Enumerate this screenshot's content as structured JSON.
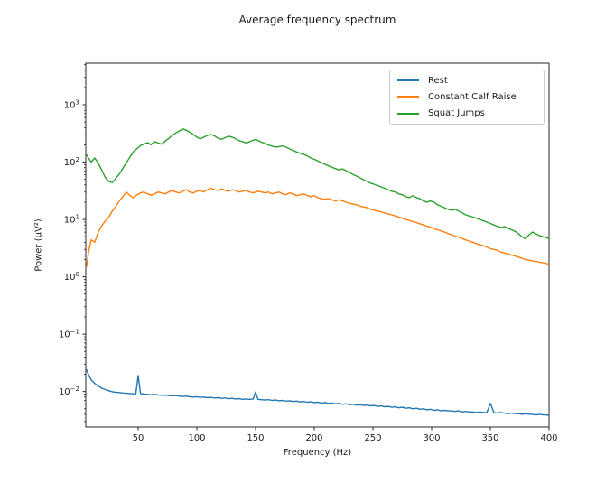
{
  "title": "Average frequency spectrum",
  "chart_data": {
    "type": "line",
    "title": "Average frequency spectrum",
    "xlabel": "Frequency (Hz)",
    "ylabel": "Power (µV²)",
    "x_scale": "linear",
    "y_scale": "log",
    "xlim": [
      5.4,
      400
    ],
    "ylim": [
      0.0024,
      5300
    ],
    "x_ticks": [
      50,
      100,
      150,
      200,
      250,
      300,
      350,
      400
    ],
    "y_tick_exponents": [
      3,
      2,
      1,
      0,
      -1,
      -2
    ],
    "grid": false,
    "legend_position": "upper right",
    "axis_color": "#262626",
    "x": [
      6,
      8,
      10,
      13,
      16,
      19,
      22,
      25,
      28,
      31,
      34,
      37,
      40,
      43,
      46,
      48,
      50,
      52,
      55,
      58,
      61,
      64,
      67,
      70,
      73,
      76,
      79,
      82,
      85,
      88,
      91,
      94,
      97,
      100,
      103,
      106,
      109,
      112,
      115,
      118,
      121,
      124,
      127,
      130,
      133,
      136,
      139,
      142,
      145,
      148,
      150,
      152,
      155,
      158,
      161,
      164,
      167,
      170,
      173,
      176,
      179,
      182,
      185,
      188,
      191,
      194,
      197,
      200,
      203,
      206,
      209,
      212,
      215,
      218,
      221,
      224,
      227,
      230,
      233,
      236,
      239,
      242,
      245,
      248,
      251,
      254,
      257,
      260,
      263,
      266,
      269,
      272,
      275,
      278,
      281,
      284,
      287,
      290,
      293,
      296,
      299,
      302,
      305,
      308,
      311,
      314,
      317,
      320,
      323,
      326,
      329,
      332,
      335,
      338,
      341,
      344,
      347,
      350,
      353,
      356,
      359,
      362,
      365,
      368,
      371,
      374,
      377,
      380,
      383,
      386,
      389,
      392,
      395,
      398,
      400
    ],
    "series": [
      {
        "name": "Rest",
        "color": "#1f77b4",
        "values": [
          0.024,
          0.019,
          0.016,
          0.0138,
          0.0124,
          0.0114,
          0.0108,
          0.0103,
          0.0099,
          0.0097,
          0.0096,
          0.0094,
          0.0093,
          0.0092,
          0.0091,
          0.0091,
          0.019,
          0.0092,
          0.009,
          0.0089,
          0.0088,
          0.0089,
          0.0087,
          0.0086,
          0.0087,
          0.0085,
          0.0084,
          0.0085,
          0.0083,
          0.0082,
          0.0083,
          0.0081,
          0.008,
          0.0081,
          0.0079,
          0.008,
          0.0078,
          0.0079,
          0.0077,
          0.0078,
          0.0076,
          0.0077,
          0.0075,
          0.0076,
          0.0074,
          0.0075,
          0.0073,
          0.0074,
          0.0073,
          0.0074,
          0.0098,
          0.0073,
          0.0072,
          0.0071,
          0.0072,
          0.007,
          0.0071,
          0.0069,
          0.007,
          0.0068,
          0.0069,
          0.0067,
          0.0068,
          0.0066,
          0.0067,
          0.0065,
          0.0066,
          0.0064,
          0.0065,
          0.0063,
          0.0064,
          0.0062,
          0.0063,
          0.0061,
          0.0062,
          0.006,
          0.0061,
          0.0059,
          0.006,
          0.0058,
          0.0059,
          0.0057,
          0.0058,
          0.0056,
          0.0057,
          0.0055,
          0.0056,
          0.0054,
          0.0055,
          0.0053,
          0.0054,
          0.0052,
          0.0053,
          0.0051,
          0.0052,
          0.005,
          0.0051,
          0.0049,
          0.005,
          0.0048,
          0.0049,
          0.0047,
          0.0048,
          0.0046,
          0.0047,
          0.0046,
          0.0046,
          0.0045,
          0.0046,
          0.0044,
          0.0045,
          0.0044,
          0.0044,
          0.0043,
          0.0044,
          0.0043,
          0.0043,
          0.0062,
          0.0043,
          0.0042,
          0.0043,
          0.0042,
          0.0041,
          0.0042,
          0.0041,
          0.0041,
          0.004,
          0.0041,
          0.004,
          0.004,
          0.0039,
          0.004,
          0.0039,
          0.0039,
          0.0038
        ]
      },
      {
        "name": "Constant Calf Raise",
        "color": "#ff7f0e",
        "values": [
          1.5,
          2.9,
          4.4,
          4.0,
          6.0,
          7.8,
          9.4,
          11,
          14,
          17,
          21,
          25,
          30,
          26,
          24,
          26,
          27.5,
          29,
          30,
          28,
          26.5,
          28,
          30,
          29,
          28,
          30,
          32,
          30,
          29,
          31,
          33,
          30,
          29,
          31,
          32,
          30,
          33,
          35,
          33,
          32,
          34,
          32,
          31,
          33,
          32,
          30,
          31,
          32,
          30,
          29,
          30,
          31,
          30,
          29,
          30,
          28,
          29,
          30,
          28,
          27,
          29,
          28,
          26,
          27,
          28,
          26,
          25,
          26,
          24,
          23,
          22.5,
          23,
          22,
          21,
          22,
          21,
          20,
          19,
          18.5,
          18,
          17,
          16.5,
          16,
          15,
          14.5,
          14,
          13.5,
          13,
          12.5,
          12,
          11.5,
          11,
          10.5,
          10,
          9.6,
          9.2,
          8.8,
          8.4,
          8,
          7.6,
          7.3,
          6.9,
          6.6,
          6.3,
          6,
          5.7,
          5.4,
          5.1,
          4.9,
          4.6,
          4.4,
          4.2,
          4,
          3.8,
          3.6,
          3.5,
          3.3,
          3.1,
          3,
          2.9,
          2.7,
          2.6,
          2.5,
          2.4,
          2.3,
          2.2,
          2.1,
          2,
          1.95,
          1.9,
          1.85,
          1.8,
          1.75,
          1.7,
          1.65
        ]
      },
      {
        "name": "Squat Jumps",
        "color": "#2ca02c",
        "values": [
          135,
          115,
          100,
          118,
          96,
          72,
          54,
          46,
          44,
          52,
          62,
          78,
          98,
          122,
          152,
          165,
          178,
          195,
          205,
          218,
          200,
          228,
          215,
          205,
          232,
          258,
          292,
          322,
          348,
          378,
          358,
          332,
          302,
          272,
          255,
          272,
          292,
          302,
          286,
          262,
          250,
          266,
          282,
          272,
          256,
          236,
          226,
          216,
          226,
          242,
          247,
          238,
          222,
          212,
          198,
          190,
          182,
          186,
          192,
          182,
          170,
          160,
          150,
          142,
          136,
          128,
          118,
          112,
          105,
          98,
          92,
          86,
          81,
          77,
          73,
          76,
          71,
          66,
          61,
          57,
          53,
          49,
          46,
          43,
          41,
          39,
          37,
          35,
          33,
          31,
          30,
          28,
          27,
          25,
          24,
          26,
          24,
          23,
          21,
          20,
          21,
          20,
          18,
          17,
          16,
          15,
          14.5,
          15,
          14,
          13,
          12,
          11.5,
          11,
          10.5,
          10,
          9.5,
          9,
          8.5,
          8,
          7.6,
          7.2,
          7.5,
          7,
          6.6,
          6.2,
          5.6,
          5,
          4.6,
          5.4,
          6,
          5.6,
          5.2,
          5,
          4.8,
          4.6
        ]
      }
    ]
  }
}
